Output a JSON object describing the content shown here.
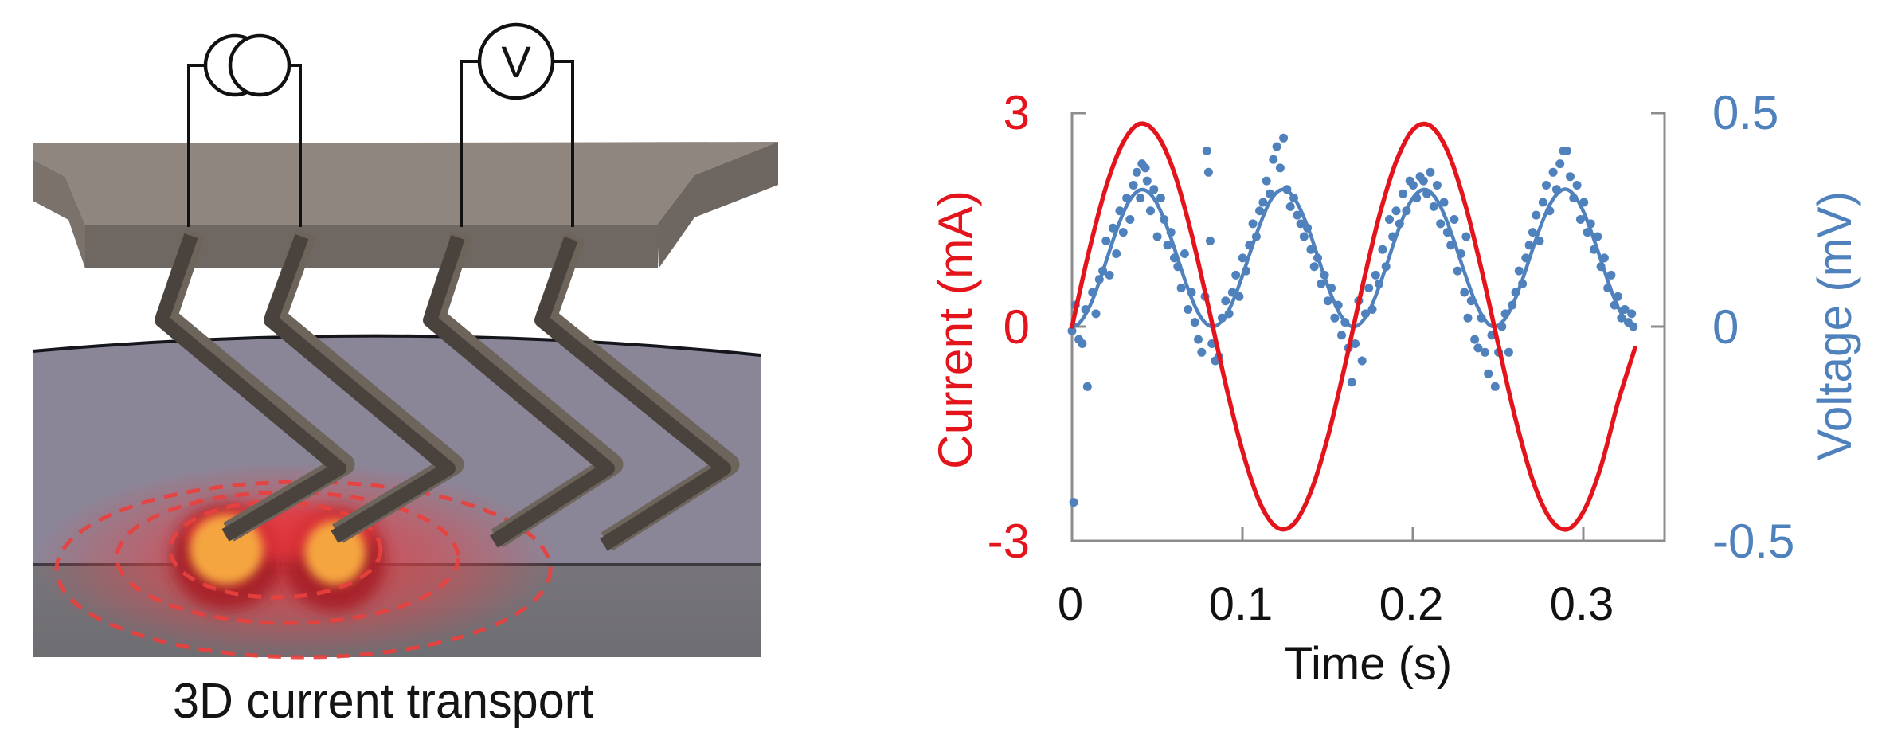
{
  "figure": {
    "left_panel": {
      "caption": "3D current transport",
      "voltmeter_label": "V",
      "colors": {
        "plate_top": "#8f877f",
        "plate_front": "#6f6862",
        "plate_side": "#7a726b",
        "probe_dark": "#4a433d",
        "probe_light": "#6d645c",
        "sample_top": "#8a8698",
        "sample_front": "#76747a",
        "hotspot_core": "#f5a53f",
        "hotspot_rim": "#a8242a",
        "current_lines": "#e8413e"
      }
    }
  },
  "chart_data": {
    "type": "line",
    "title": "",
    "xlabel": "Time (s)",
    "ylabel": "Current (mA)",
    "ylabel_right": "Voltage (mV)",
    "xlim": [
      0,
      0.3473
    ],
    "ylim": [
      -3,
      3
    ],
    "ylim_right": [
      -0.5,
      0.5
    ],
    "grid": false,
    "legend": null,
    "x_ticks": {
      "values": [
        0,
        0.1,
        0.2,
        0.3
      ],
      "labels": [
        "0",
        "0.1",
        "0.2",
        "0.3"
      ]
    },
    "y_ticks_left": {
      "values": [
        3,
        0,
        -3
      ],
      "labels": [
        "3",
        "0",
        "-3"
      ]
    },
    "y_ticks_right": {
      "values": [
        0.5,
        0,
        -0.5
      ],
      "labels": [
        "0.5",
        "0",
        "-0.5"
      ]
    },
    "colors": {
      "current": "#e3141b",
      "voltage": "#4f81bd",
      "axes": "#8c8c8c"
    },
    "series": [
      {
        "name": "Current",
        "axis": "left",
        "style": "line",
        "color": "#e3141b",
        "x": [
          0,
          0.01,
          0.02,
          0.03,
          0.04,
          0.05,
          0.06,
          0.07,
          0.08,
          0.09,
          0.1,
          0.11,
          0.12,
          0.13,
          0.14,
          0.15,
          0.16,
          0.17,
          0.18,
          0.19,
          0.2,
          0.21,
          0.22,
          0.23,
          0.24,
          0.25,
          0.26,
          0.27,
          0.28,
          0.29,
          0.3,
          0.31,
          0.32,
          0.33
        ],
        "y": [
          0,
          1.06,
          1.96,
          2.58,
          2.84,
          2.68,
          2.15,
          1.3,
          0.27,
          -0.8,
          -1.75,
          -2.46,
          -2.81,
          -2.76,
          -2.31,
          -1.54,
          -0.54,
          0.54,
          1.54,
          2.31,
          2.76,
          2.81,
          2.46,
          1.75,
          0.8,
          -0.27,
          -1.3,
          -2.15,
          -2.68,
          -2.84,
          -2.58,
          -1.96,
          -1.06,
          -0.3
        ]
      },
      {
        "name": "Voltage fit",
        "axis": "right",
        "style": "line",
        "color": "#4f81bd",
        "x": [
          0,
          0.004,
          0.008,
          0.012,
          0.016,
          0.02,
          0.024,
          0.028,
          0.032,
          0.036,
          0.04,
          0.044,
          0.048,
          0.052,
          0.056,
          0.06,
          0.064,
          0.068,
          0.072,
          0.076,
          0.08,
          0.084,
          0.088,
          0.092,
          0.096,
          0.1,
          0.104,
          0.108,
          0.112,
          0.116,
          0.12,
          0.124,
          0.128,
          0.132,
          0.136,
          0.14,
          0.144,
          0.148,
          0.152,
          0.156,
          0.16,
          0.164,
          0.168,
          0.172,
          0.176,
          0.18,
          0.184,
          0.188,
          0.192,
          0.196,
          0.2,
          0.204,
          0.208,
          0.212,
          0.216,
          0.22,
          0.224,
          0.228,
          0.232,
          0.236,
          0.24,
          0.244,
          0.248,
          0.252,
          0.256,
          0.26,
          0.264,
          0.268,
          0.272,
          0.276,
          0.28,
          0.284,
          0.288,
          0.292,
          0.296,
          0.3,
          0.304,
          0.308,
          0.312,
          0.316,
          0.32,
          0.324,
          0.328,
          0.33
        ],
        "y": [
          0,
          0.007,
          0.029,
          0.062,
          0.105,
          0.152,
          0.201,
          0.245,
          0.282,
          0.307,
          0.319,
          0.316,
          0.299,
          0.269,
          0.229,
          0.183,
          0.134,
          0.088,
          0.048,
          0.019,
          0.003,
          0.001,
          0.014,
          0.039,
          0.076,
          0.12,
          0.168,
          0.215,
          0.257,
          0.292,
          0.313,
          0.32,
          0.311,
          0.288,
          0.254,
          0.212,
          0.164,
          0.116,
          0.073,
          0.037,
          0.012,
          0.0,
          0.004,
          0.022,
          0.052,
          0.093,
          0.139,
          0.188,
          0.233,
          0.273,
          0.301,
          0.317,
          0.319,
          0.306,
          0.28,
          0.243,
          0.199,
          0.151,
          0.104,
          0.061,
          0.028,
          0.006,
          0.0,
          0.01,
          0.032,
          0.067,
          0.11,
          0.157,
          0.205,
          0.248,
          0.284,
          0.308,
          0.32,
          0.316,
          0.297,
          0.266,
          0.225,
          0.179,
          0.131,
          0.085,
          0.046,
          0.018,
          0.002,
          0.0
        ]
      },
      {
        "name": "Voltage data",
        "axis": "right",
        "style": "scatter",
        "color": "#4f81bd",
        "points": [
          [
            0.0,
            -0.01
          ],
          [
            0.001,
            -0.41
          ],
          [
            0.002,
            0.05
          ],
          [
            0.004,
            -0.03
          ],
          [
            0.006,
            -0.04
          ],
          [
            0.008,
            0.04
          ],
          [
            0.009,
            -0.14
          ],
          [
            0.012,
            0.08
          ],
          [
            0.014,
            0.03
          ],
          [
            0.016,
            0.11
          ],
          [
            0.018,
            0.13
          ],
          [
            0.02,
            0.2
          ],
          [
            0.022,
            0.12
          ],
          [
            0.024,
            0.23
          ],
          [
            0.026,
            0.17
          ],
          [
            0.028,
            0.27
          ],
          [
            0.03,
            0.22
          ],
          [
            0.032,
            0.3
          ],
          [
            0.034,
            0.25
          ],
          [
            0.036,
            0.33
          ],
          [
            0.038,
            0.36
          ],
          [
            0.04,
            0.3
          ],
          [
            0.041,
            0.38
          ],
          [
            0.043,
            0.37
          ],
          [
            0.044,
            0.34
          ],
          [
            0.046,
            0.27
          ],
          [
            0.048,
            0.32
          ],
          [
            0.05,
            0.21
          ],
          [
            0.052,
            0.3
          ],
          [
            0.054,
            0.25
          ],
          [
            0.056,
            0.19
          ],
          [
            0.058,
            0.22
          ],
          [
            0.06,
            0.16
          ],
          [
            0.062,
            0.14
          ],
          [
            0.064,
            0.09
          ],
          [
            0.066,
            0.17
          ],
          [
            0.068,
            0.04
          ],
          [
            0.07,
            0.08
          ],
          [
            0.072,
            0.01
          ],
          [
            0.074,
            -0.03
          ],
          [
            0.076,
            -0.06
          ],
          [
            0.078,
            0.07
          ],
          [
            0.079,
            0.41
          ],
          [
            0.08,
            0.36
          ],
          [
            0.081,
            0.2
          ],
          [
            0.082,
            -0.04
          ],
          [
            0.084,
            -0.08
          ],
          [
            0.086,
            -0.07
          ],
          [
            0.088,
            0.02
          ],
          [
            0.09,
            0.06
          ],
          [
            0.092,
            0.03
          ],
          [
            0.094,
            0.08
          ],
          [
            0.096,
            0.12
          ],
          [
            0.098,
            0.07
          ],
          [
            0.1,
            0.16
          ],
          [
            0.102,
            0.13
          ],
          [
            0.104,
            0.19
          ],
          [
            0.106,
            0.24
          ],
          [
            0.108,
            0.21
          ],
          [
            0.11,
            0.27
          ],
          [
            0.112,
            0.29
          ],
          [
            0.114,
            0.34
          ],
          [
            0.116,
            0.31
          ],
          [
            0.118,
            0.39
          ],
          [
            0.12,
            0.42
          ],
          [
            0.122,
            0.37
          ],
          [
            0.124,
            0.44
          ],
          [
            0.126,
            0.32
          ],
          [
            0.128,
            0.28
          ],
          [
            0.13,
            0.3
          ],
          [
            0.132,
            0.26
          ],
          [
            0.134,
            0.24
          ],
          [
            0.136,
            0.21
          ],
          [
            0.138,
            0.23
          ],
          [
            0.14,
            0.18
          ],
          [
            0.142,
            0.14
          ],
          [
            0.144,
            0.16
          ],
          [
            0.146,
            0.1
          ],
          [
            0.148,
            0.12
          ],
          [
            0.15,
            0.06
          ],
          [
            0.152,
            0.09
          ],
          [
            0.154,
            0.02
          ],
          [
            0.156,
            0.05
          ],
          [
            0.158,
            -0.02
          ],
          [
            0.16,
            0.01
          ],
          [
            0.162,
            -0.05
          ],
          [
            0.164,
            -0.13
          ],
          [
            0.166,
            -0.04
          ],
          [
            0.168,
            0.06
          ],
          [
            0.17,
            -0.08
          ],
          [
            0.172,
            0.03
          ],
          [
            0.174,
            0.09
          ],
          [
            0.176,
            0.04
          ],
          [
            0.178,
            0.12
          ],
          [
            0.18,
            0.1
          ],
          [
            0.182,
            0.18
          ],
          [
            0.184,
            0.14
          ],
          [
            0.186,
            0.25
          ],
          [
            0.188,
            0.21
          ],
          [
            0.19,
            0.27
          ],
          [
            0.192,
            0.24
          ],
          [
            0.194,
            0.31
          ],
          [
            0.196,
            0.27
          ],
          [
            0.198,
            0.34
          ],
          [
            0.2,
            0.33
          ],
          [
            0.202,
            0.3
          ],
          [
            0.204,
            0.35
          ],
          [
            0.206,
            0.34
          ],
          [
            0.208,
            0.31
          ],
          [
            0.21,
            0.36
          ],
          [
            0.212,
            0.28
          ],
          [
            0.214,
            0.33
          ],
          [
            0.216,
            0.24
          ],
          [
            0.218,
            0.29
          ],
          [
            0.22,
            0.22
          ],
          [
            0.222,
            0.19
          ],
          [
            0.224,
            0.25
          ],
          [
            0.226,
            0.13
          ],
          [
            0.228,
            0.17
          ],
          [
            0.23,
            0.08
          ],
          [
            0.231,
            0.21
          ],
          [
            0.232,
            0.02
          ],
          [
            0.234,
            0.06
          ],
          [
            0.236,
            -0.03
          ],
          [
            0.238,
            -0.05
          ],
          [
            0.24,
            0.02
          ],
          [
            0.242,
            -0.06
          ],
          [
            0.244,
            -0.11
          ],
          [
            0.246,
            -0.02
          ],
          [
            0.248,
            -0.14
          ],
          [
            0.25,
            -0.06
          ],
          [
            0.252,
            0.0
          ],
          [
            0.254,
            0.03
          ],
          [
            0.256,
            -0.06
          ],
          [
            0.258,
            0.05
          ],
          [
            0.26,
            0.08
          ],
          [
            0.262,
            0.13
          ],
          [
            0.264,
            0.1
          ],
          [
            0.266,
            0.16
          ],
          [
            0.268,
            0.19
          ],
          [
            0.27,
            0.22
          ],
          [
            0.272,
            0.26
          ],
          [
            0.274,
            0.2
          ],
          [
            0.276,
            0.29
          ],
          [
            0.278,
            0.33
          ],
          [
            0.28,
            0.27
          ],
          [
            0.282,
            0.36
          ],
          [
            0.284,
            0.32
          ],
          [
            0.286,
            0.38
          ],
          [
            0.288,
            0.41
          ],
          [
            0.29,
            0.41
          ],
          [
            0.292,
            0.35
          ],
          [
            0.294,
            0.3
          ],
          [
            0.296,
            0.33
          ],
          [
            0.298,
            0.25
          ],
          [
            0.3,
            0.29
          ],
          [
            0.302,
            0.22
          ],
          [
            0.304,
            0.24
          ],
          [
            0.306,
            0.18
          ],
          [
            0.308,
            0.21
          ],
          [
            0.31,
            0.14
          ],
          [
            0.312,
            0.16
          ],
          [
            0.314,
            0.09
          ],
          [
            0.316,
            0.12
          ],
          [
            0.318,
            0.05
          ],
          [
            0.32,
            0.07
          ],
          [
            0.322,
            0.02
          ],
          [
            0.324,
            0.04
          ],
          [
            0.326,
            0.01
          ],
          [
            0.328,
            0.03
          ],
          [
            0.329,
            0.0
          ]
        ]
      }
    ]
  }
}
